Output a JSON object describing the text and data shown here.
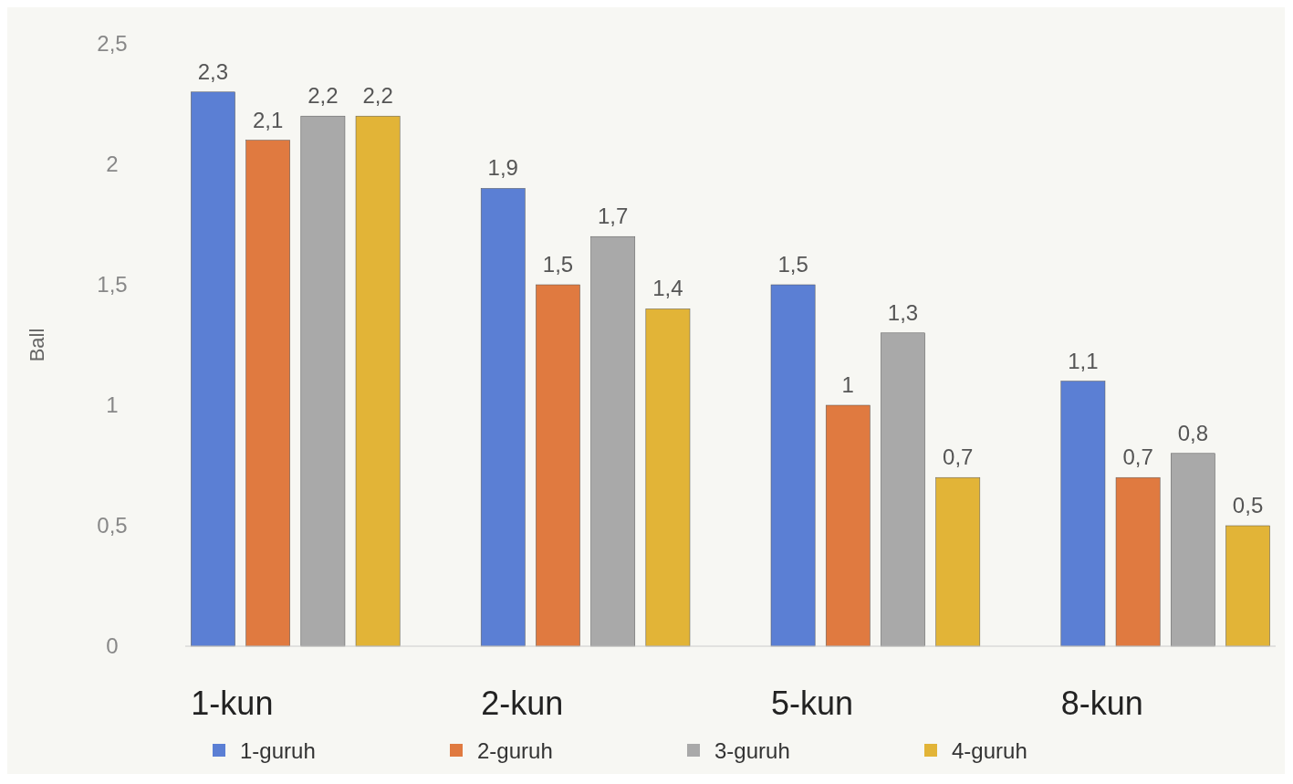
{
  "chart_data": {
    "type": "bar",
    "ylabel": "Ball",
    "categories": [
      "1-kun",
      "2-kun",
      "5-kun",
      "8-kun"
    ],
    "series": [
      {
        "name": "1-guruh",
        "color": "#5b7fd4",
        "values": [
          2.3,
          1.9,
          1.5,
          1.1
        ],
        "value_labels": [
          "2,3",
          "1,9",
          "1,5",
          "1,1"
        ]
      },
      {
        "name": "2-guruh",
        "color": "#e07a40",
        "values": [
          2.1,
          1.5,
          1,
          0.7
        ],
        "value_labels": [
          "2,1",
          "1,5",
          "1",
          "0,7"
        ]
      },
      {
        "name": "3-guruh",
        "color": "#a9a9a9",
        "values": [
          2.2,
          1.7,
          1.3,
          0.8
        ],
        "value_labels": [
          "2,2",
          "1,7",
          "1,3",
          "0,8"
        ]
      },
      {
        "name": "4-guruh",
        "color": "#e2b437",
        "values": [
          2.2,
          1.4,
          0.7,
          0.5
        ],
        "value_labels": [
          "2,2",
          "1,4",
          "0,7",
          "0,5"
        ]
      }
    ],
    "ylim": [
      0,
      2.5
    ],
    "yticks": [
      {
        "value": 0,
        "label": "0"
      },
      {
        "value": 0.5,
        "label": "0,5"
      },
      {
        "value": 1,
        "label": "1"
      },
      {
        "value": 1.5,
        "label": "1,5"
      },
      {
        "value": 2,
        "label": "2"
      },
      {
        "value": 2.5,
        "label": "2,5"
      }
    ],
    "grid": false,
    "legend": "bottom"
  }
}
